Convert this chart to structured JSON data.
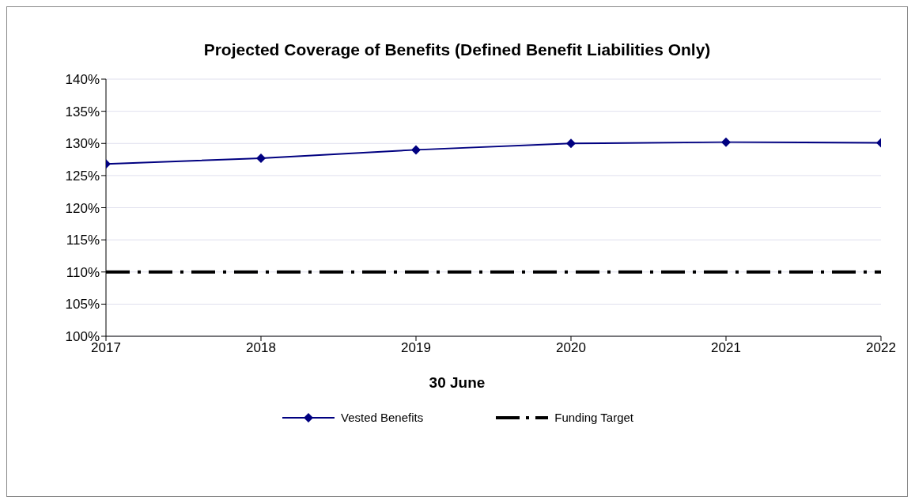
{
  "chart_data": {
    "type": "line",
    "title": "Projected Coverage of Benefits (Defined Benefit Liabilities Only)",
    "xlabel": "30 June",
    "x": [
      2017,
      2018,
      2019,
      2020,
      2021,
      2022
    ],
    "series": [
      {
        "name": "Vested Benefits",
        "color": "#000080",
        "values": [
          126.8,
          127.7,
          129.0,
          130.0,
          130.2,
          130.1
        ],
        "marker": "diamond",
        "line_style": "solid"
      },
      {
        "name": "Funding Target",
        "color": "#000000",
        "values": [
          110,
          110,
          110,
          110,
          110,
          110
        ],
        "marker": "none",
        "line_style": "dashed"
      }
    ],
    "xlim": [
      2017,
      2022
    ],
    "xticks": [
      2017,
      2018,
      2019,
      2020,
      2021,
      2022
    ],
    "ylim": [
      100,
      140
    ],
    "yticks": [
      {
        "value": 100,
        "label": "100%"
      },
      {
        "value": 105,
        "label": "105%"
      },
      {
        "value": 110,
        "label": "110%"
      },
      {
        "value": 115,
        "label": "115%"
      },
      {
        "value": 120,
        "label": "120%"
      },
      {
        "value": 125,
        "label": "125%"
      },
      {
        "value": 130,
        "label": "130%"
      },
      {
        "value": 135,
        "label": "135%"
      },
      {
        "value": 140,
        "label": "140%"
      }
    ],
    "grid": "y",
    "legend": "bottom"
  }
}
